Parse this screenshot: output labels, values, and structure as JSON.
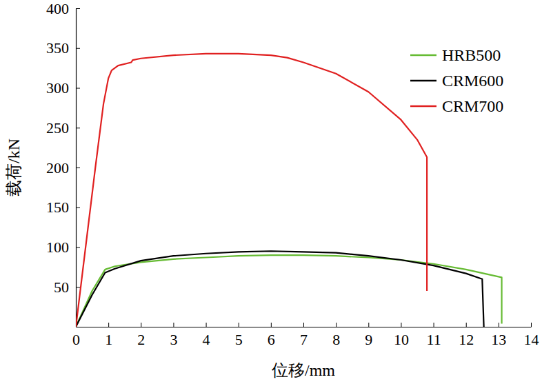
{
  "chart_data": {
    "type": "line",
    "x_label": "位移/mm",
    "y_label": "载荷/kN",
    "xlim": [
      0,
      14
    ],
    "xticks": [
      0,
      1,
      2,
      3,
      4,
      5,
      6,
      7,
      8,
      9,
      10,
      11,
      12,
      13,
      14
    ],
    "ylim": [
      0,
      400
    ],
    "yticks": [
      50,
      100,
      150,
      200,
      250,
      300,
      350,
      400
    ],
    "grid": false,
    "legend": "upper right",
    "series": [
      {
        "name": "HRB500",
        "color": "#66bb33",
        "x": [
          0,
          0.5,
          0.9,
          1.2,
          2,
          3,
          4,
          5,
          6,
          7,
          8,
          9,
          10,
          11,
          12,
          13.1,
          13.1
        ],
        "values": [
          0,
          45,
          72,
          76,
          81,
          85,
          87,
          89,
          90,
          90,
          89,
          87,
          84,
          79,
          72,
          62,
          4
        ]
      },
      {
        "name": "CRM600",
        "color": "#000000",
        "x": [
          0,
          0.5,
          0.9,
          1.2,
          2,
          3,
          4,
          5,
          6,
          7,
          8,
          9,
          10,
          11,
          12,
          12.5,
          12.55
        ],
        "values": [
          0,
          40,
          68,
          73,
          83,
          89,
          92,
          94,
          95,
          94,
          93,
          89,
          84,
          77,
          67,
          60,
          0
        ]
      },
      {
        "name": "CRM700",
        "color": "#e02020",
        "x": [
          0,
          0.3,
          0.6,
          0.85,
          1.0,
          1.1,
          1.3,
          1.7,
          1.75,
          2,
          3,
          4,
          5,
          6,
          6.5,
          7,
          8,
          9,
          10,
          10.5,
          10.8,
          10.8
        ],
        "values": [
          0,
          100,
          200,
          280,
          312,
          322,
          328,
          332,
          335,
          337,
          341,
          343,
          343,
          341,
          338,
          332,
          318,
          295,
          260,
          235,
          213,
          45
        ]
      }
    ]
  }
}
